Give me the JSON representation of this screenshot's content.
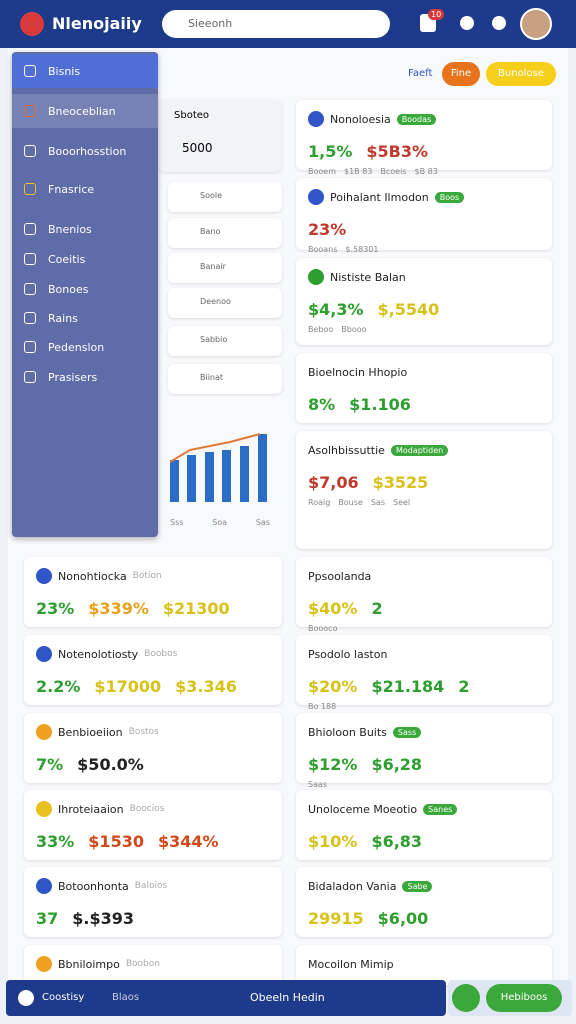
{
  "header": {
    "logo": "Nlenojaiiy",
    "search": "Sieeonh",
    "badge": "10"
  },
  "sidebar": {
    "items": [
      "Bisnis",
      "Bneoceblian",
      "Booorhosstion",
      "Fnasrice",
      "Bnenios",
      "Coeitis",
      "Bonoes",
      "Rains",
      "Pedenslon",
      "Prasisers"
    ]
  },
  "top_actions": [
    "Faeft",
    "Fine",
    "Bunolose"
  ],
  "submenu": {
    "title": "Sboteo",
    "value": "5000",
    "items": [
      "Soole",
      "Bano",
      "Banair",
      "Deenoo",
      "Sabbio",
      "Biinat"
    ],
    "chart_labels": [
      "Sss",
      "Soa",
      "Sas"
    ]
  },
  "left_cards": [
    {
      "title": "Nonohtiocka",
      "badge": "Botion",
      "icon_color": "#2f55c9",
      "values": [
        {
          "text": "23%",
          "color": "#2e9e2e"
        },
        {
          "text": "$339%",
          "color": "#e8a21a"
        },
        {
          "text": "$21300",
          "color": "#d8c21a"
        }
      ]
    },
    {
      "title": "Notenolotiosty",
      "badge": "Boobos",
      "icon_color": "#2f55c9",
      "values": [
        {
          "text": "2.2%",
          "color": "#2e9e2e"
        },
        {
          "text": "$17000",
          "color": "#d8c21a"
        },
        {
          "text": "$3.346",
          "color": "#d8c21a"
        }
      ]
    },
    {
      "title": "Benbioeiion",
      "badge": "Bostos",
      "icon_color": "#f0a020",
      "values": [
        {
          "text": "7%",
          "color": "#2e9e2e"
        },
        {
          "text": "$50.0%",
          "color": "#222"
        }
      ]
    },
    {
      "title": "Ihroteiaaion",
      "badge": "Boocios",
      "icon_color": "#e8c020",
      "values": [
        {
          "text": "33%",
          "color": "#2e9e2e"
        },
        {
          "text": "$1530",
          "color": "#d04a1a"
        },
        {
          "text": "$344%",
          "color": "#d04a1a"
        }
      ]
    },
    {
      "title": "Botoonhonta",
      "badge": "Baloios",
      "icon_color": "#2f55c9",
      "values": [
        {
          "text": "37",
          "color": "#2e9e2e"
        },
        {
          "text": "$.$393",
          "color": "#222"
        }
      ]
    },
    {
      "title": "Bbniloimpo",
      "badge": "Boobon",
      "icon_color": "#f0a020",
      "values": []
    }
  ],
  "right_cards": [
    {
      "title": "Nonoloesia",
      "badge": "Boodas",
      "icon_color": "#2f55c9",
      "values": [
        {
          "text": "1,5%",
          "color": "#2e9e2e"
        },
        {
          "text": "$5B3%",
          "color": "#c0392b"
        }
      ],
      "notes": [
        "Booem",
        "$1B 83",
        "Bcoeis",
        "$B 83"
      ]
    },
    {
      "title": "Poihalant Ilmodon",
      "badge": "Boos",
      "icon_color": "#2f55c9",
      "values": [
        {
          "text": "23%",
          "color": "#c0392b"
        }
      ],
      "notes": [
        "Booans",
        "$.58301"
      ]
    },
    {
      "title": "Nististe Balan",
      "badge": "",
      "icon_color": "#2e9e2e",
      "values": [
        {
          "text": "$4,3%",
          "color": "#2e9e2e"
        },
        {
          "text": "$,5540",
          "color": "#d8c21a"
        }
      ],
      "notes": [
        "Beboo",
        "Bbooo"
      ]
    },
    {
      "title": "Bioelnocin Hhopio",
      "badge": "",
      "icon_color": "",
      "values": [
        {
          "text": "8%",
          "color": "#2e9e2e"
        },
        {
          "text": "$1.106",
          "color": "#2e9e2e"
        }
      ],
      "notes": []
    },
    {
      "title": "Asolhbissuttie",
      "badge": "Modaptiden",
      "icon_color": "",
      "values": [
        {
          "text": "$7,06",
          "color": "#c0392b"
        },
        {
          "text": "$3525",
          "color": "#d8c21a"
        }
      ],
      "notes": [
        "Roaig",
        "Bouse",
        "Sas",
        "Seel"
      ]
    },
    {
      "title": "Ppsoolanda",
      "badge": "",
      "icon_color": "",
      "values": [
        {
          "text": "$40%",
          "color": "#d8c21a"
        },
        {
          "text": "2",
          "color": "#2e9e2e"
        }
      ],
      "notes": [
        "Boooco"
      ]
    },
    {
      "title": "Psodolo laston",
      "badge": "",
      "icon_color": "",
      "values": [
        {
          "text": "$20%",
          "color": "#d8c21a"
        },
        {
          "text": "$21.184",
          "color": "#2e9e2e"
        },
        {
          "text": "2",
          "color": "#2e9e2e"
        }
      ],
      "notes": [
        "Bo 188"
      ]
    },
    {
      "title": "Bhioloon Buits",
      "badge": "Sass",
      "icon_color": "",
      "values": [
        {
          "text": "$12%",
          "color": "#2e9e2e"
        },
        {
          "text": "$6,28",
          "color": "#2e9e2e"
        }
      ],
      "notes": [
        "Saas"
      ]
    },
    {
      "title": "Unoloceme Moeotio",
      "badge": "Sanes",
      "icon_color": "",
      "values": [
        {
          "text": "$10%",
          "color": "#d8c21a"
        },
        {
          "text": "$6,83",
          "color": "#2e9e2e"
        }
      ],
      "notes": []
    },
    {
      "title": "Bidaladon Vania",
      "badge": "Sabe",
      "icon_color": "",
      "values": [
        {
          "text": "29915",
          "color": "#d8c21a"
        },
        {
          "text": "$6,00",
          "color": "#2e9e2e"
        }
      ],
      "notes": []
    },
    {
      "title": "Mocoilon Mimip",
      "badge": "",
      "icon_color": "",
      "values": [],
      "notes": []
    }
  ],
  "bottom": {
    "left": "Coostisy",
    "left2": "Blaos",
    "center": "Obeeln Hedin",
    "button": "Hebiboos"
  }
}
